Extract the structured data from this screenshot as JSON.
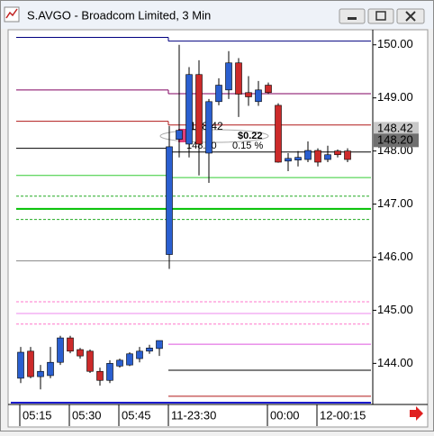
{
  "chart_data": {
    "type": "candlestick",
    "title": "S.AVGO - Broadcom Limited, 3 Min",
    "categories": [
      "05:15",
      null,
      null,
      null,
      null,
      "05:30",
      null,
      null,
      null,
      null,
      "05:45",
      null,
      null,
      null,
      null,
      "11-23:30",
      null,
      null,
      null,
      null,
      null,
      null,
      null,
      null,
      null,
      "00:00",
      null,
      null,
      null,
      null,
      "12-00:15",
      null,
      null,
      null
    ],
    "open": [
      143.72,
      144.23,
      143.75,
      143.77,
      144.02,
      144.48,
      144.26,
      144.23,
      143.85,
      143.68,
      143.95,
      143.97,
      144.09,
      144.23,
      144.28,
      146.05,
      148.22,
      148.13,
      149.44,
      147.96,
      148.93,
      149.15,
      149.66,
      149.1,
      148.93,
      149.24,
      148.86,
      147.81,
      147.83,
      147.84,
      148.01,
      147.84,
      148.0,
      148.0
    ],
    "high": [
      144.31,
      144.31,
      143.97,
      144.31,
      144.52,
      144.52,
      144.29,
      144.26,
      143.92,
      144.06,
      144.09,
      144.21,
      144.31,
      144.35,
      144.43,
      148.47,
      150.0,
      149.58,
      149.71,
      148.98,
      149.37,
      149.88,
      149.75,
      149.41,
      149.32,
      149.29,
      148.9,
      147.96,
      148.0,
      148.18,
      148.05,
      148.1,
      148.03,
      148.05
    ],
    "low": [
      143.63,
      143.72,
      143.51,
      143.72,
      143.97,
      144.19,
      144.09,
      143.82,
      143.58,
      143.63,
      143.92,
      143.95,
      144.02,
      144.18,
      144.14,
      145.78,
      147.88,
      147.88,
      147.54,
      147.4,
      148.86,
      148.98,
      148.64,
      148.85,
      148.85,
      149.07,
      147.78,
      147.62,
      147.71,
      147.79,
      147.71,
      147.79,
      147.88,
      147.79
    ],
    "close": [
      144.21,
      143.75,
      143.85,
      144.02,
      144.48,
      144.23,
      144.14,
      143.85,
      143.68,
      144.0,
      144.06,
      144.18,
      144.23,
      144.29,
      144.43,
      148.08,
      148.39,
      149.44,
      148.13,
      148.93,
      149.24,
      149.66,
      149.07,
      149.02,
      149.15,
      149.1,
      147.79,
      147.86,
      147.88,
      148.01,
      147.79,
      147.93,
      147.93,
      147.84
    ],
    "up_color": "#2a5fd0",
    "down_color": "#cc2a2a",
    "ylim": [
      143.26,
      150.25
    ],
    "yticks": [
      {
        "value": 144,
        "label": "144.00"
      },
      {
        "value": 145,
        "label": "145.00"
      },
      {
        "value": 146,
        "label": "146.00"
      },
      {
        "value": 147,
        "label": "147.00"
      },
      {
        "value": 148,
        "label": "148.00"
      },
      {
        "value": 149,
        "label": "149.00"
      },
      {
        "value": 150,
        "label": "150.00"
      }
    ],
    "levels": [
      {
        "color": "#000080",
        "values": [
          150.14,
          150.07
        ]
      },
      {
        "color": "#800060",
        "values": [
          149.15,
          149.08
        ]
      },
      {
        "color": "#b01818",
        "values": [
          148.56,
          148.49
        ]
      },
      {
        "color": "#000000",
        "values": [
          148.05,
          147.98
        ]
      },
      {
        "color": "#33cc33",
        "values": [
          147.54,
          147.5
        ]
      },
      {
        "color": "#22aa22",
        "values": [
          147.15,
          147.15
        ],
        "dashed": true
      },
      {
        "color": "#00c000",
        "values": [
          146.91,
          146.91
        ],
        "width": 2
      },
      {
        "color": "#22aa22",
        "values": [
          146.71,
          146.71
        ],
        "dashed": true
      },
      {
        "color": "#888888",
        "values": [
          145.93,
          145.93
        ]
      },
      {
        "color": "#ff77cc",
        "values": [
          145.16,
          145.16
        ],
        "dashed": true
      },
      {
        "color": "#ee88ee",
        "values": [
          144.94,
          144.94
        ]
      },
      {
        "color": "#ff77cc",
        "values": [
          144.74,
          144.74
        ],
        "dashed": true
      },
      {
        "color": "#dd55dd",
        "values": [
          null,
          144.36
        ]
      },
      {
        "color": "#000000",
        "values": [
          null,
          143.87
        ]
      },
      {
        "color": "#b01818",
        "values": [
          null,
          143.38
        ]
      }
    ],
    "price_tags": [
      {
        "value": 148.42,
        "label": "148.42",
        "color": "#c8c8c8",
        "text_color": "#000000"
      },
      {
        "value": 148.2,
        "label": "148.20",
        "color": "#707070",
        "text_color": "#ffffff"
      }
    ],
    "annotation": {
      "change": "$0.22",
      "percent": "0.15 %",
      "from": "148.42",
      "to": "148.20"
    }
  }
}
